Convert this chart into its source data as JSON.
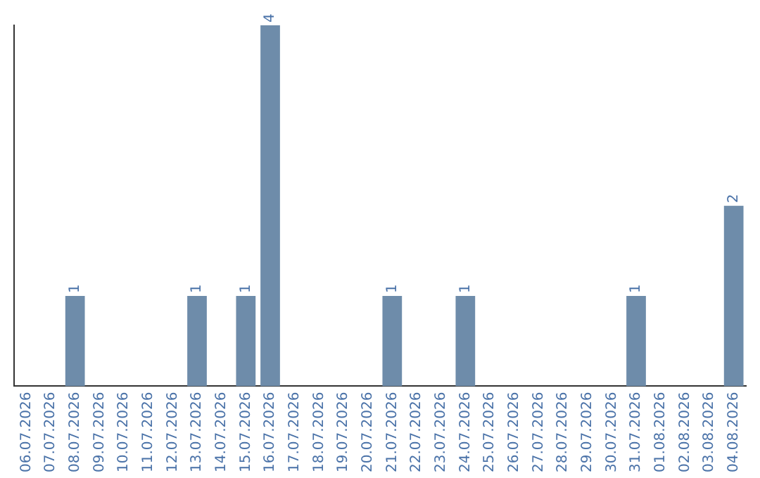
{
  "chart_data": {
    "type": "bar",
    "categories": [
      "06.07.2026",
      "07.07.2026",
      "08.07.2026",
      "09.07.2026",
      "10.07.2026",
      "11.07.2026",
      "12.07.2026",
      "13.07.2026",
      "14.07.2026",
      "15.07.2026",
      "16.07.2026",
      "17.07.2026",
      "18.07.2026",
      "19.07.2026",
      "20.07.2026",
      "21.07.2026",
      "22.07.2026",
      "23.07.2026",
      "24.07.2026",
      "25.07.2026",
      "26.07.2026",
      "27.07.2026",
      "28.07.2026",
      "29.07.2026",
      "30.07.2026",
      "31.07.2026",
      "01.08.2026",
      "02.08.2026",
      "03.08.2026",
      "04.08.2026"
    ],
    "values": [
      0,
      0,
      1,
      0,
      0,
      0,
      0,
      1,
      0,
      1,
      4,
      0,
      0,
      0,
      0,
      1,
      0,
      0,
      1,
      0,
      0,
      0,
      0,
      0,
      0,
      1,
      0,
      0,
      0,
      2
    ],
    "value_labels": [
      null,
      null,
      "1",
      null,
      null,
      null,
      null,
      "1",
      null,
      "1",
      "4",
      null,
      null,
      null,
      null,
      "1",
      null,
      null,
      "1",
      null,
      null,
      null,
      null,
      null,
      null,
      "1",
      null,
      null,
      null,
      "2"
    ],
    "color": "#6e8caa",
    "grid": false,
    "tick_labels": "x",
    "legend": false
  }
}
